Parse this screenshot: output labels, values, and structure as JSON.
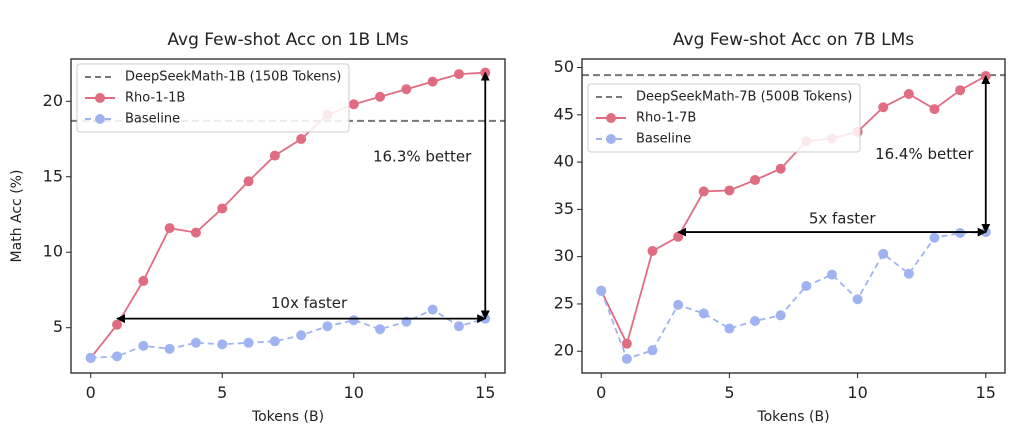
{
  "chart_data": [
    {
      "type": "line",
      "title": "Avg Few-shot Acc on 1B LMs",
      "xlabel": "Tokens (B)",
      "ylabel": "Math Acc (%)",
      "xlim": [
        -0.75,
        15.75
      ],
      "ylim": [
        2.0,
        22.8
      ],
      "xticks": [
        0,
        5,
        10,
        15
      ],
      "yticks": [
        5,
        10,
        15,
        20
      ],
      "grid": false,
      "legend_position": "top-left",
      "series": [
        {
          "name": "Rho-1-1B",
          "style": "solid",
          "color": "#e06c82",
          "x": [
            0,
            1,
            2,
            3,
            4,
            5,
            6,
            7,
            8,
            9,
            10,
            11,
            12,
            13,
            14,
            15
          ],
          "values": [
            3.0,
            5.2,
            8.1,
            11.6,
            11.3,
            12.9,
            14.7,
            16.4,
            17.5,
            19.1,
            19.8,
            20.3,
            20.8,
            21.3,
            21.8,
            21.9
          ]
        },
        {
          "name": "Baseline",
          "style": "dashed",
          "color": "#9fb3f0",
          "x": [
            0,
            1,
            2,
            3,
            4,
            5,
            6,
            7,
            8,
            9,
            10,
            11,
            12,
            13,
            14,
            15
          ],
          "values": [
            3.0,
            3.1,
            3.8,
            3.6,
            4.0,
            3.9,
            4.0,
            4.1,
            4.5,
            5.1,
            5.5,
            4.9,
            5.4,
            6.2,
            5.1,
            5.6
          ]
        }
      ],
      "reference_line": {
        "name": "DeepSeekMath-1B (150B Tokens)",
        "y": 18.7,
        "color": "#777777",
        "style": "dashed"
      },
      "annotations": [
        {
          "text": "16.3% better",
          "type": "vertical-arrow",
          "x": 15,
          "y_from": 5.6,
          "y_to": 21.9,
          "label_x": 12.6,
          "label_y": 16.3
        },
        {
          "text": "10x faster",
          "type": "horizontal-arrow",
          "y": 5.6,
          "x_from": 1,
          "x_to": 15,
          "label_x": 8.3,
          "label_y": 6.6
        }
      ]
    },
    {
      "type": "line",
      "title": "Avg Few-shot Acc on 7B LMs",
      "xlabel": "Tokens (B)",
      "ylabel": "",
      "xlim": [
        -0.75,
        15.75
      ],
      "ylim": [
        17.7,
        50.9
      ],
      "xticks": [
        0,
        5,
        10,
        15
      ],
      "yticks": [
        20,
        25,
        30,
        35,
        40,
        45,
        50
      ],
      "grid": false,
      "legend_position": "upper-left",
      "series": [
        {
          "name": "Rho-1-7B",
          "style": "solid",
          "color": "#e06c82",
          "x": [
            0,
            1,
            2,
            3,
            4,
            5,
            6,
            7,
            8,
            9,
            10,
            11,
            12,
            13,
            14,
            15
          ],
          "values": [
            26.4,
            20.8,
            30.6,
            32.1,
            36.9,
            37.0,
            38.1,
            39.3,
            42.2,
            42.5,
            43.2,
            45.8,
            47.2,
            45.6,
            47.6,
            49.1
          ]
        },
        {
          "name": "Baseline",
          "style": "dashed",
          "color": "#9fb3f0",
          "x": [
            0,
            1,
            2,
            3,
            4,
            5,
            6,
            7,
            8,
            9,
            10,
            11,
            12,
            13,
            14,
            15
          ],
          "values": [
            26.4,
            19.2,
            20.1,
            24.9,
            24.0,
            22.4,
            23.2,
            23.8,
            26.9,
            28.1,
            25.5,
            30.3,
            28.2,
            32.0,
            32.5,
            32.6
          ]
        }
      ],
      "reference_line": {
        "name": "DeepSeekMath-7B (500B Tokens)",
        "y": 49.2,
        "color": "#777777",
        "style": "dashed"
      },
      "annotations": [
        {
          "text": "16.4% better",
          "type": "vertical-arrow",
          "x": 15,
          "y_from": 32.6,
          "y_to": 49.1,
          "label_x": 12.6,
          "label_y": 40.8
        },
        {
          "text": "5x faster",
          "type": "horizontal-arrow",
          "y": 32.6,
          "x_from": 3,
          "x_to": 15,
          "label_x": 9.4,
          "label_y": 34.0
        }
      ]
    }
  ]
}
